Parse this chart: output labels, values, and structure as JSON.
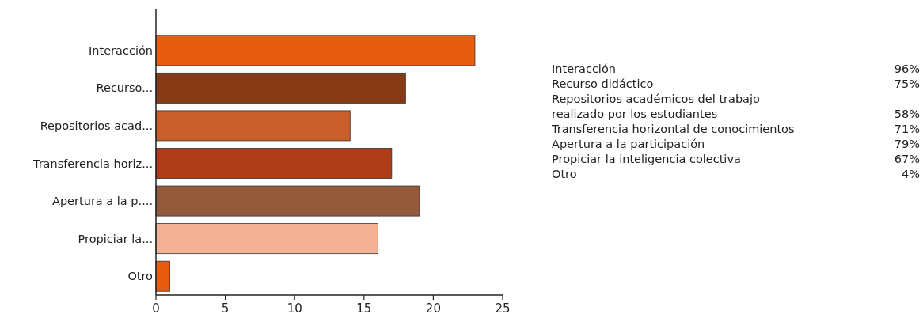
{
  "chart_data": {
    "type": "bar",
    "orientation": "horizontal",
    "categories": [
      "Interacción",
      "Recurso...",
      "Repositorios acad...",
      "Transferencia horiz...",
      "Apertura a la p....",
      "Propiciar la...",
      "Otro"
    ],
    "values": [
      23,
      18,
      14,
      17,
      19,
      16,
      1
    ],
    "colors": [
      "#e65c10",
      "#873a16",
      "#c85e2a",
      "#ad3d18",
      "#955a3c",
      "#f4b294",
      "#e65c10"
    ],
    "xlim": [
      0,
      25
    ],
    "xticks": [
      0,
      5,
      10,
      15,
      20,
      25
    ],
    "grid": false,
    "annotations": [
      "Interacción 96%",
      "Recurso didáctico 75%",
      "Repositorios académicos del trabajo\nrealizado por los estudiantes 58%",
      "Transferencia horizontal de conocimientos 71%",
      "Apertura a la participación 79%",
      "Propiciar la inteligencia colectiva 67%",
      "Otro 4%"
    ]
  }
}
